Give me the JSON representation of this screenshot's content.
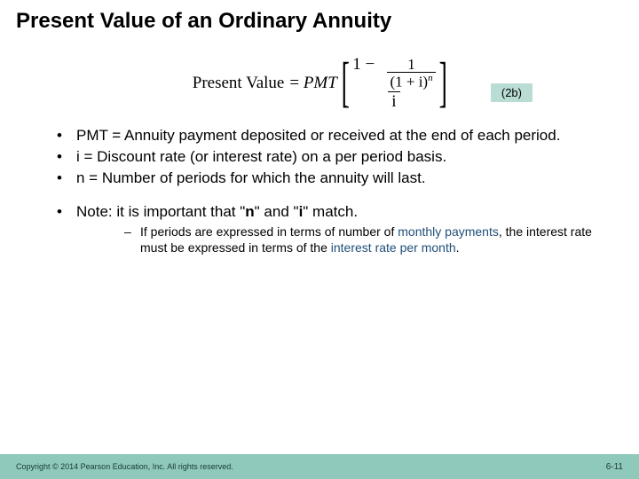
{
  "title": "Present Value of an Ordinary Annuity",
  "formula": {
    "lhs": "Present Value",
    "equals": "=",
    "pmt": "PMT",
    "inner_num": "1",
    "inner_den_base": "(1 + i)",
    "inner_den_exp": "n",
    "outer_num_prefix": "1 −",
    "outer_den": "i",
    "label": "(2b)"
  },
  "bullets": {
    "b1": "PMT = Annuity payment deposited or received at the end of each period.",
    "b2": "i = Discount rate (or interest rate) on a per period basis.",
    "b3": "n = Number of periods for which the annuity will last.",
    "note_prefix": "Note: it is important that \"",
    "note_n": "n",
    "note_mid": "\" and \"",
    "note_i": "i",
    "note_suffix": "\" match.",
    "sub_a": "If periods are expressed in terms of number of ",
    "sub_link1": "monthly payments",
    "sub_b": ", the interest rate must be expressed in terms of the ",
    "sub_link2": "interest rate per month",
    "sub_c": "."
  },
  "footer": {
    "copyright": "Copyright © 2014 Pearson Education, Inc. All rights reserved.",
    "page": "6-11"
  },
  "colors": {
    "accent": "#8ec9bb",
    "label_bg": "#b9dcd4",
    "link": "#1f4e79"
  }
}
